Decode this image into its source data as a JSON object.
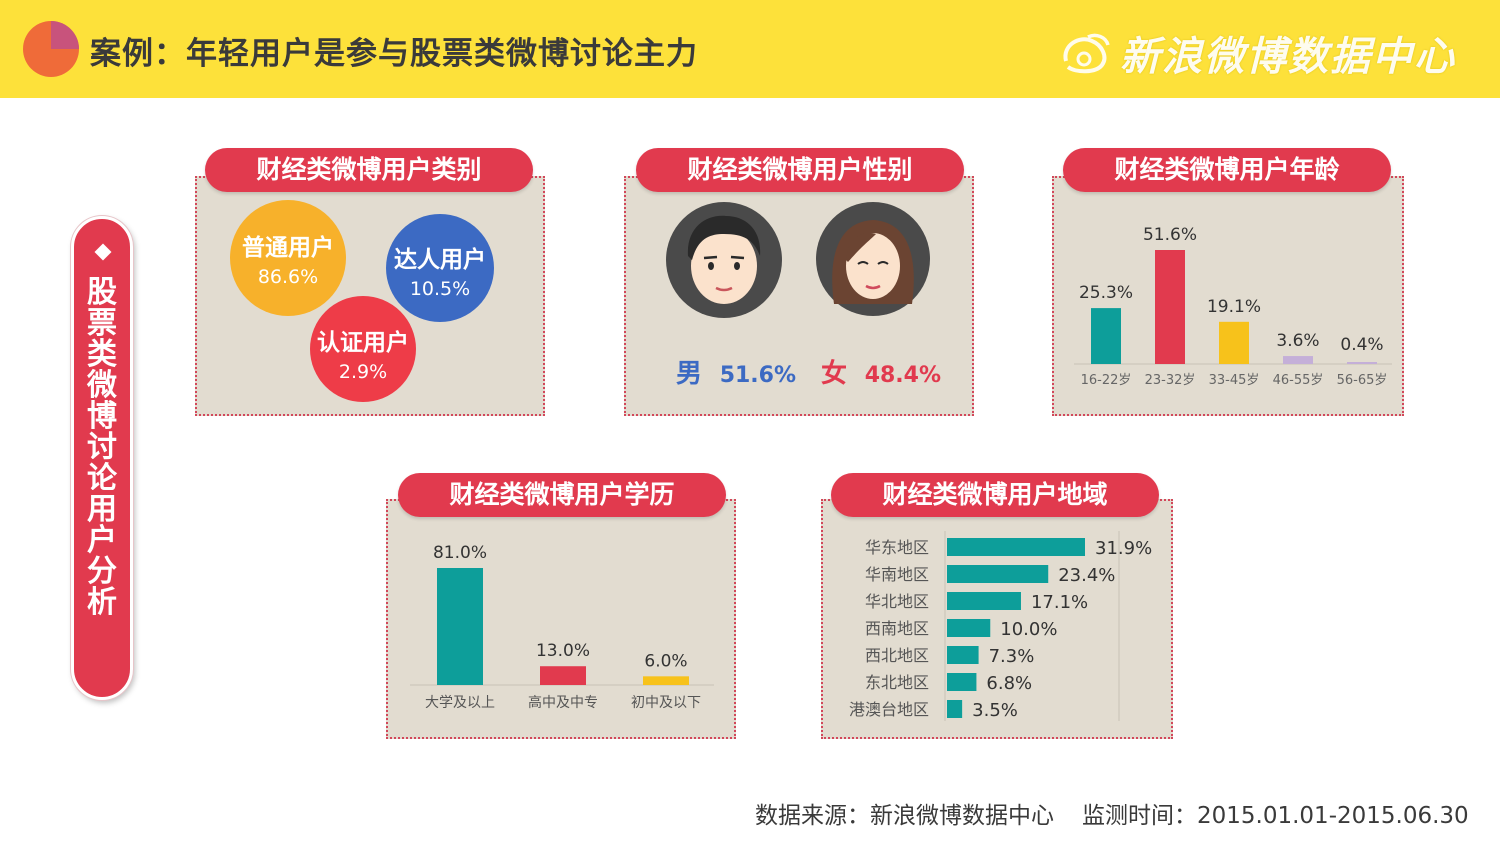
{
  "header": {
    "title": "案例：年轻用户是参与股票类微博讨论主力",
    "brand": "新浪微博数据中心"
  },
  "side_label": "股票类微博讨论用户分析",
  "colors": {
    "header": "#fde13a",
    "red": "#e13a4e",
    "teal": "#0d9e9a",
    "yellow": "#f7c21b",
    "blue": "#3c6ac3",
    "purple": "#c4afd8",
    "panel": "#e2dcd0"
  },
  "panels": {
    "category": {
      "title": "财经类微博用户类别",
      "bubbles": [
        {
          "label": "普通用户",
          "value": "86.6%",
          "color": "#f7b12b"
        },
        {
          "label": "达人用户",
          "value": "10.5%",
          "color": "#3c6ac3"
        },
        {
          "label": "认证用户",
          "value": "2.9%",
          "color": "#ee3c48"
        }
      ]
    },
    "gender": {
      "title": "财经类微博用户性别",
      "male_label": "男",
      "male_value": "51.6%",
      "female_label": "女",
      "female_value": "48.4%",
      "male_icon": "male-avatar-icon",
      "female_icon": "female-avatar-icon"
    },
    "age": {
      "title": "财经类微博用户年龄"
    },
    "education": {
      "title": "财经类微博用户学历"
    },
    "region": {
      "title": "财经类微博用户地域"
    }
  },
  "chart_data": [
    {
      "id": "category",
      "type": "bubble",
      "title": "财经类微博用户类别",
      "categories": [
        "普通用户",
        "达人用户",
        "认证用户"
      ],
      "values": [
        86.6,
        10.5,
        2.9
      ]
    },
    {
      "id": "gender",
      "type": "table",
      "title": "财经类微博用户性别",
      "categories": [
        "男",
        "女"
      ],
      "values": [
        51.6,
        48.4
      ]
    },
    {
      "id": "age",
      "type": "bar",
      "title": "财经类微博用户年龄",
      "categories": [
        "16-22岁",
        "23-32岁",
        "33-45岁",
        "46-55岁",
        "56-65岁"
      ],
      "values": [
        25.3,
        51.6,
        19.1,
        3.6,
        0.4
      ],
      "labels": [
        "25.3%",
        "51.6%",
        "19.1%",
        "3.6%",
        "0.4%"
      ],
      "colors": [
        "#0d9e9a",
        "#e13a4e",
        "#f7c21b",
        "#c4afd8",
        "#c4afd8"
      ]
    },
    {
      "id": "education",
      "type": "bar",
      "title": "财经类微博用户学历",
      "categories": [
        "大学及以上",
        "高中及中专",
        "初中及以下"
      ],
      "values": [
        81.0,
        13.0,
        6.0
      ],
      "labels": [
        "81.0%",
        "13.0%",
        "6.0%"
      ],
      "colors": [
        "#0d9e9a",
        "#e13a4e",
        "#f7c21b"
      ]
    },
    {
      "id": "region",
      "type": "bar",
      "orientation": "horizontal",
      "title": "财经类微博用户地域",
      "categories": [
        "华东地区",
        "华南地区",
        "华北地区",
        "西南地区",
        "西北地区",
        "东北地区",
        "港澳台地区"
      ],
      "values": [
        31.9,
        23.4,
        17.1,
        10.0,
        7.3,
        6.8,
        3.5
      ],
      "labels": [
        "31.9%",
        "23.4%",
        "17.1%",
        "10.0%",
        "7.3%",
        "6.8%",
        "3.5%"
      ],
      "color": "#0d9e9a"
    }
  ],
  "footer": {
    "source": "数据来源：新浪微博数据中心",
    "period": "监测时间：2015.01.01-2015.06.30"
  }
}
